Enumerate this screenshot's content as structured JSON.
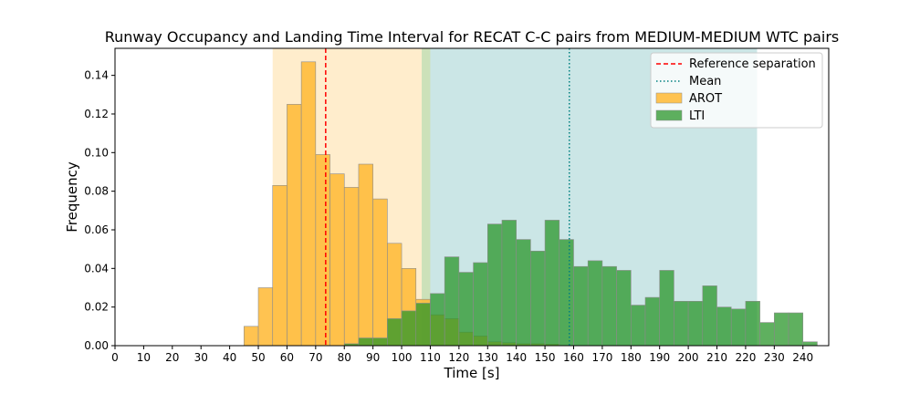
{
  "chart_data": {
    "type": "bar",
    "title": "Runway Occupancy and Landing Time Interval for RECAT C-C pairs from MEDIUM-MEDIUM WTC pairs",
    "xlabel": "Time [s]",
    "ylabel": "Frequency",
    "xlim": [
      0,
      249
    ],
    "ylim": [
      0,
      0.154
    ],
    "xticks": [
      "0",
      "10",
      "20",
      "30",
      "40",
      "50",
      "60",
      "70",
      "80",
      "90",
      "100",
      "110",
      "120",
      "130",
      "140",
      "150",
      "160",
      "170",
      "180",
      "190",
      "200",
      "210",
      "220",
      "230",
      "240"
    ],
    "yticks": [
      "0.00",
      "0.02",
      "0.04",
      "0.06",
      "0.08",
      "0.10",
      "0.12",
      "0.14"
    ],
    "bin_width": 5,
    "shaded_regions": [
      {
        "from": 55,
        "to": 107,
        "color": "#ffe8bf",
        "alpha": 0.8
      },
      {
        "from": 107,
        "to": 110,
        "color": "#bfd9a8",
        "alpha": 0.8
      },
      {
        "from": 110,
        "to": 224,
        "color": "#b9dede",
        "alpha": 0.75
      }
    ],
    "reference_lines": [
      {
        "name": "Reference separation",
        "x": 73.5,
        "color": "#ff0000",
        "style": "dashed"
      },
      {
        "name": "Mean",
        "x": 158.5,
        "color": "#008080",
        "style": "dotted"
      }
    ],
    "series": [
      {
        "name": "AROT",
        "color": "#ffb833",
        "edge": "#8c8c8c",
        "bin_starts": [
          45,
          50,
          55,
          60,
          65,
          70,
          75,
          80,
          85,
          90,
          95,
          100,
          105,
          110,
          115,
          120,
          125,
          130,
          135,
          140,
          145,
          150
        ],
        "values": [
          0.01,
          0.03,
          0.083,
          0.125,
          0.147,
          0.099,
          0.089,
          0.082,
          0.094,
          0.076,
          0.053,
          0.04,
          0.024,
          0.016,
          0.014,
          0.007,
          0.005,
          0.002,
          0.0015,
          0.001,
          0.001,
          0.0008
        ]
      },
      {
        "name": "LTI",
        "color": "#2a962a",
        "edge": "#8c8c8c",
        "bin_starts": [
          80,
          85,
          90,
          95,
          100,
          105,
          110,
          115,
          120,
          125,
          130,
          135,
          140,
          145,
          150,
          155,
          160,
          165,
          170,
          175,
          180,
          185,
          190,
          195,
          200,
          205,
          210,
          215,
          220,
          225,
          230,
          235,
          240
        ],
        "values": [
          0.001,
          0.004,
          0.004,
          0.014,
          0.018,
          0.022,
          0.027,
          0.046,
          0.038,
          0.043,
          0.063,
          0.065,
          0.055,
          0.049,
          0.065,
          0.055,
          0.041,
          0.044,
          0.041,
          0.039,
          0.021,
          0.025,
          0.039,
          0.023,
          0.023,
          0.031,
          0.02,
          0.019,
          0.023,
          0.012,
          0.017,
          0.017,
          0.002
        ]
      }
    ],
    "legend": {
      "position": "top-right",
      "entries": [
        "Reference separation",
        "Mean",
        "AROT",
        "LTI"
      ]
    }
  }
}
